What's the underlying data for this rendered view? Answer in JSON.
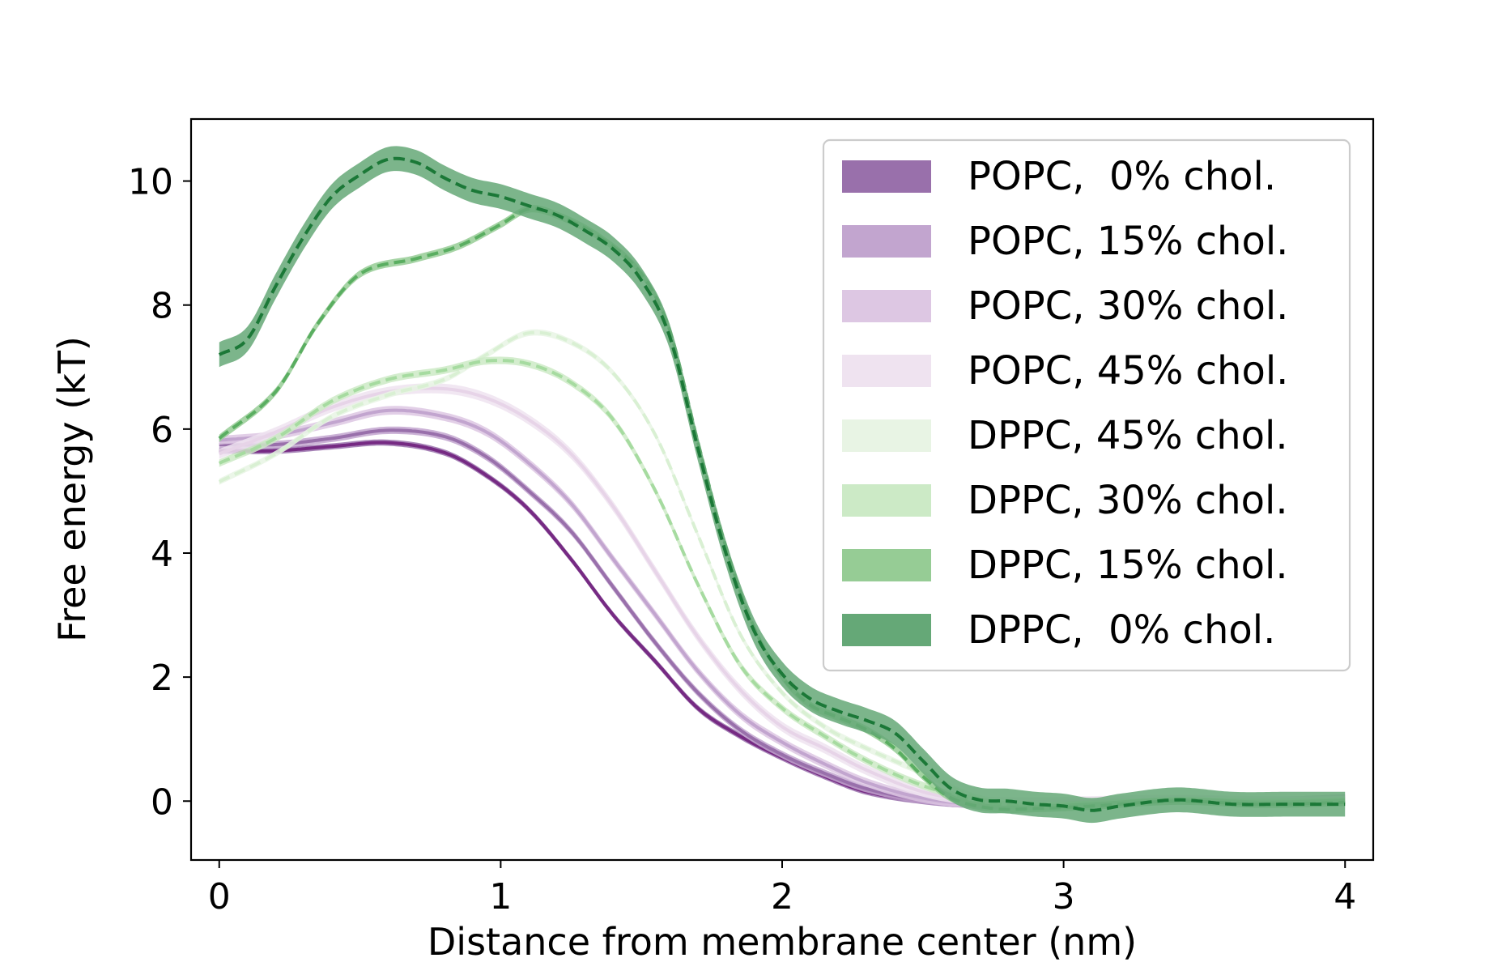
{
  "chart_data": {
    "type": "line",
    "title": "",
    "xlabel": "Distance from membrane center (nm)",
    "ylabel": "Free energy (kT)",
    "xlim": [
      -0.1,
      4.1
    ],
    "ylim": [
      -0.95,
      11.0
    ],
    "xticks": [
      0,
      1,
      2,
      3,
      4
    ],
    "xtick_labels": [
      "0",
      "1",
      "2",
      "3",
      "4"
    ],
    "yticks": [
      0,
      2,
      4,
      6,
      8,
      10
    ],
    "ytick_labels": [
      "0",
      "2",
      "4",
      "6",
      "8",
      "10"
    ],
    "legend_position": "upper right",
    "series": [
      {
        "name": "POPC,  0% chol.",
        "color": "#762a83",
        "band_color": "#9970ab",
        "style": "solid",
        "band": 0.05,
        "points": [
          [
            0,
            5.65
          ],
          [
            0.2,
            5.65
          ],
          [
            0.4,
            5.72
          ],
          [
            0.6,
            5.78
          ],
          [
            0.8,
            5.62
          ],
          [
            0.95,
            5.25
          ],
          [
            1.1,
            4.7
          ],
          [
            1.25,
            3.9
          ],
          [
            1.4,
            3.0
          ],
          [
            1.55,
            2.25
          ],
          [
            1.7,
            1.5
          ],
          [
            1.85,
            1.05
          ],
          [
            2.0,
            0.7
          ],
          [
            2.15,
            0.4
          ],
          [
            2.3,
            0.15
          ],
          [
            2.5,
            0.0
          ],
          [
            2.7,
            -0.07
          ],
          [
            2.9,
            -0.08
          ],
          [
            3.1,
            -0.05
          ],
          [
            3.4,
            0.0
          ],
          [
            3.7,
            0.0
          ],
          [
            4.0,
            0.02
          ]
        ]
      },
      {
        "name": "POPC, 15% chol.",
        "color": "#9970ab",
        "band_color": "#c2a5cf",
        "style": "solid",
        "band": 0.06,
        "points": [
          [
            0,
            5.75
          ],
          [
            0.2,
            5.75
          ],
          [
            0.4,
            5.85
          ],
          [
            0.6,
            5.98
          ],
          [
            0.8,
            5.88
          ],
          [
            0.95,
            5.55
          ],
          [
            1.1,
            5.0
          ],
          [
            1.25,
            4.35
          ],
          [
            1.4,
            3.45
          ],
          [
            1.55,
            2.55
          ],
          [
            1.7,
            1.75
          ],
          [
            1.85,
            1.15
          ],
          [
            2.0,
            0.75
          ],
          [
            2.15,
            0.45
          ],
          [
            2.3,
            0.2
          ],
          [
            2.5,
            0.02
          ],
          [
            2.7,
            -0.05
          ],
          [
            2.9,
            -0.06
          ],
          [
            3.1,
            -0.05
          ],
          [
            3.4,
            0.02
          ],
          [
            3.7,
            0.0
          ],
          [
            4.0,
            0.05
          ]
        ]
      },
      {
        "name": "POPC, 30% chol.",
        "color": "#c2a5cf",
        "band_color": "#ddc7e3",
        "style": "solid",
        "band": 0.07,
        "points": [
          [
            0,
            5.82
          ],
          [
            0.2,
            5.9
          ],
          [
            0.4,
            6.1
          ],
          [
            0.6,
            6.3
          ],
          [
            0.8,
            6.2
          ],
          [
            0.95,
            5.95
          ],
          [
            1.1,
            5.45
          ],
          [
            1.25,
            4.8
          ],
          [
            1.4,
            3.9
          ],
          [
            1.55,
            3.0
          ],
          [
            1.7,
            2.1
          ],
          [
            1.85,
            1.4
          ],
          [
            2.0,
            0.95
          ],
          [
            2.15,
            0.6
          ],
          [
            2.3,
            0.3
          ],
          [
            2.5,
            0.05
          ],
          [
            2.7,
            -0.05
          ],
          [
            2.9,
            -0.05
          ],
          [
            3.1,
            -0.02
          ],
          [
            3.4,
            0.02
          ],
          [
            3.7,
            0.0
          ],
          [
            4.0,
            0.03
          ]
        ]
      },
      {
        "name": "POPC, 45% chol.",
        "color": "#e7d4e8",
        "band_color": "#efe3f0",
        "style": "solid",
        "band": 0.08,
        "points": [
          [
            0,
            5.6
          ],
          [
            0.2,
            5.95
          ],
          [
            0.4,
            6.35
          ],
          [
            0.6,
            6.6
          ],
          [
            0.8,
            6.65
          ],
          [
            0.95,
            6.5
          ],
          [
            1.1,
            6.15
          ],
          [
            1.25,
            5.6
          ],
          [
            1.4,
            4.75
          ],
          [
            1.55,
            3.7
          ],
          [
            1.7,
            2.65
          ],
          [
            1.85,
            1.8
          ],
          [
            2.0,
            1.2
          ],
          [
            2.15,
            0.85
          ],
          [
            2.3,
            0.5
          ],
          [
            2.5,
            0.15
          ],
          [
            2.7,
            0.0
          ],
          [
            2.9,
            -0.02
          ],
          [
            3.1,
            0.0
          ],
          [
            3.4,
            0.02
          ],
          [
            3.7,
            0.0
          ],
          [
            4.0,
            0.0
          ]
        ]
      },
      {
        "name": "DPPC, 45% chol.",
        "color": "#d9f0d3",
        "band_color": "#e8f4e4",
        "style": "dashed",
        "band": 0.05,
        "points": [
          [
            0,
            5.15
          ],
          [
            0.2,
            5.6
          ],
          [
            0.4,
            6.2
          ],
          [
            0.6,
            6.55
          ],
          [
            0.8,
            6.8
          ],
          [
            0.95,
            7.2
          ],
          [
            1.1,
            7.55
          ],
          [
            1.25,
            7.4
          ],
          [
            1.4,
            6.9
          ],
          [
            1.55,
            5.9
          ],
          [
            1.7,
            4.3
          ],
          [
            1.85,
            2.7
          ],
          [
            2.0,
            1.75
          ],
          [
            2.15,
            1.2
          ],
          [
            2.3,
            0.85
          ],
          [
            2.5,
            0.45
          ],
          [
            2.7,
            0.05
          ],
          [
            2.9,
            -0.05
          ],
          [
            3.1,
            -0.05
          ],
          [
            3.4,
            0.02
          ],
          [
            3.7,
            0.0
          ],
          [
            4.0,
            0.0
          ]
        ]
      },
      {
        "name": "DPPC, 30% chol.",
        "color": "#a6dba0",
        "band_color": "#cceac6",
        "style": "dashed",
        "band": 0.06,
        "points": [
          [
            0,
            5.45
          ],
          [
            0.2,
            5.85
          ],
          [
            0.4,
            6.45
          ],
          [
            0.6,
            6.8
          ],
          [
            0.8,
            6.95
          ],
          [
            0.95,
            7.1
          ],
          [
            1.1,
            7.05
          ],
          [
            1.25,
            6.75
          ],
          [
            1.4,
            6.15
          ],
          [
            1.55,
            5.0
          ],
          [
            1.7,
            3.5
          ],
          [
            1.85,
            2.2
          ],
          [
            2.0,
            1.5
          ],
          [
            2.15,
            1.05
          ],
          [
            2.3,
            0.65
          ],
          [
            2.5,
            0.25
          ],
          [
            2.7,
            0.0
          ],
          [
            2.9,
            -0.08
          ],
          [
            3.1,
            -0.05
          ],
          [
            3.4,
            0.0
          ],
          [
            3.7,
            -0.02
          ],
          [
            4.0,
            0.0
          ]
        ]
      },
      {
        "name": "DPPC, 15% chol.",
        "color": "#5aae61",
        "band_color": "#96cc95",
        "style": "dashed",
        "band": 0.06,
        "points": [
          [
            0,
            5.85
          ],
          [
            0.2,
            6.6
          ],
          [
            0.35,
            7.7
          ],
          [
            0.5,
            8.5
          ],
          [
            0.7,
            8.75
          ],
          [
            0.85,
            8.95
          ],
          [
            1.0,
            9.3
          ],
          [
            1.1,
            9.55
          ],
          [
            1.2,
            9.45
          ],
          [
            1.35,
            9.1
          ],
          [
            1.5,
            8.5
          ],
          [
            1.6,
            7.6
          ],
          [
            1.7,
            5.8
          ],
          [
            1.8,
            4.1
          ],
          [
            1.9,
            2.8
          ],
          [
            2.0,
            2.0
          ],
          [
            2.1,
            1.55
          ],
          [
            2.2,
            1.35
          ],
          [
            2.3,
            1.15
          ],
          [
            2.4,
            0.85
          ],
          [
            2.5,
            0.4
          ],
          [
            2.6,
            0.05
          ],
          [
            2.75,
            -0.12
          ],
          [
            2.9,
            -0.12
          ],
          [
            3.1,
            -0.08
          ],
          [
            3.4,
            0.0
          ],
          [
            3.7,
            -0.05
          ],
          [
            4.0,
            -0.02
          ]
        ]
      },
      {
        "name": "DPPC,  0% chol.",
        "color": "#1b7837",
        "band_color": "#65a877",
        "style": "dashed",
        "band": 0.2,
        "points": [
          [
            0,
            7.2
          ],
          [
            0.1,
            7.45
          ],
          [
            0.2,
            8.3
          ],
          [
            0.3,
            9.1
          ],
          [
            0.4,
            9.75
          ],
          [
            0.5,
            10.1
          ],
          [
            0.6,
            10.35
          ],
          [
            0.7,
            10.3
          ],
          [
            0.8,
            10.05
          ],
          [
            0.9,
            9.85
          ],
          [
            1.0,
            9.75
          ],
          [
            1.1,
            9.6
          ],
          [
            1.2,
            9.45
          ],
          [
            1.3,
            9.2
          ],
          [
            1.4,
            8.9
          ],
          [
            1.5,
            8.4
          ],
          [
            1.6,
            7.5
          ],
          [
            1.7,
            5.7
          ],
          [
            1.8,
            4.0
          ],
          [
            1.9,
            2.75
          ],
          [
            2.0,
            2.05
          ],
          [
            2.1,
            1.65
          ],
          [
            2.2,
            1.45
          ],
          [
            2.3,
            1.3
          ],
          [
            2.4,
            1.1
          ],
          [
            2.5,
            0.65
          ],
          [
            2.6,
            0.2
          ],
          [
            2.7,
            0.02
          ],
          [
            2.8,
            0.0
          ],
          [
            2.9,
            -0.05
          ],
          [
            3.0,
            -0.08
          ],
          [
            3.1,
            -0.15
          ],
          [
            3.2,
            -0.08
          ],
          [
            3.4,
            0.02
          ],
          [
            3.6,
            -0.05
          ],
          [
            3.8,
            -0.05
          ],
          [
            4.0,
            -0.05
          ]
        ]
      }
    ]
  }
}
